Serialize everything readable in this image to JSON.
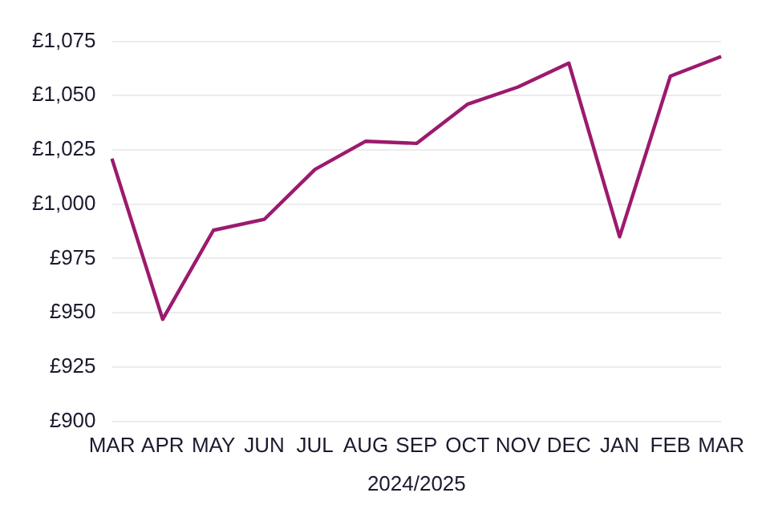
{
  "chart_data": {
    "type": "line",
    "xlabel": "2024/2025",
    "categories": [
      "MAR",
      "APR",
      "MAY",
      "JUN",
      "JUL",
      "AUG",
      "SEP",
      "OCT",
      "NOV",
      "DEC",
      "JAN",
      "FEB",
      "MAR"
    ],
    "series": [
      {
        "color": "#9c1a6e",
        "values": [
          1021,
          947,
          988,
          993,
          1016,
          1029,
          1028,
          1046,
          1054,
          1065,
          985,
          1059,
          1068
        ]
      }
    ],
    "ylim": [
      900,
      1075
    ],
    "yticks": [
      {
        "value": 900,
        "label": "£900"
      },
      {
        "value": 925,
        "label": "£925"
      },
      {
        "value": 950,
        "label": "£950"
      },
      {
        "value": 975,
        "label": "£975"
      },
      {
        "value": 1000,
        "label": "£1,000"
      },
      {
        "value": 1025,
        "label": "£1,025"
      },
      {
        "value": 1050,
        "label": "£1,050"
      },
      {
        "value": 1075,
        "label": "£1,075"
      }
    ],
    "grid": "y",
    "legend": false,
    "marker": "none",
    "line_style": "solid"
  }
}
